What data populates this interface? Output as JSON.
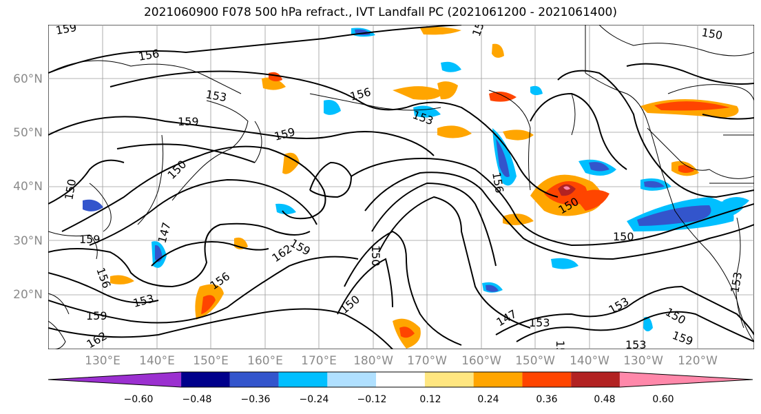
{
  "title": "2021060900 F078 500 hPa refract., IVT Landfall PC (2021061200 - 2021061400)",
  "map": {
    "lat_labels": [
      "60°N",
      "50°N",
      "40°N",
      "30°N",
      "20°N"
    ],
    "lon_labels": [
      "130°E",
      "140°E",
      "150°E",
      "160°E",
      "170°E",
      "180°W",
      "170°W",
      "160°W",
      "150°W",
      "140°W",
      "130°W",
      "120°W"
    ],
    "contour_labels": [
      "159",
      "156",
      "153",
      "159",
      "156",
      "159",
      "153",
      "156",
      "150",
      "150",
      "147",
      "159",
      "159",
      "162",
      "156",
      "150",
      "150",
      "153",
      "159",
      "147",
      "153",
      "159",
      "150",
      "150",
      "153",
      "153",
      "150",
      "159",
      "153",
      "150",
      "156",
      "162",
      "156"
    ]
  },
  "colorbar": {
    "tick_labels": [
      "−0.60",
      "−0.48",
      "−0.36",
      "−0.24",
      "−0.12",
      "0.12",
      "0.24",
      "0.36",
      "0.48",
      "0.60"
    ],
    "colors": [
      "#9b30d0",
      "#00008b",
      "#3355cc",
      "#00bfff",
      "#b0e0ff",
      "#ffffff",
      "#ffe680",
      "#ffa500",
      "#ff4500",
      "#b22222",
      "#ff88aa"
    ]
  }
}
